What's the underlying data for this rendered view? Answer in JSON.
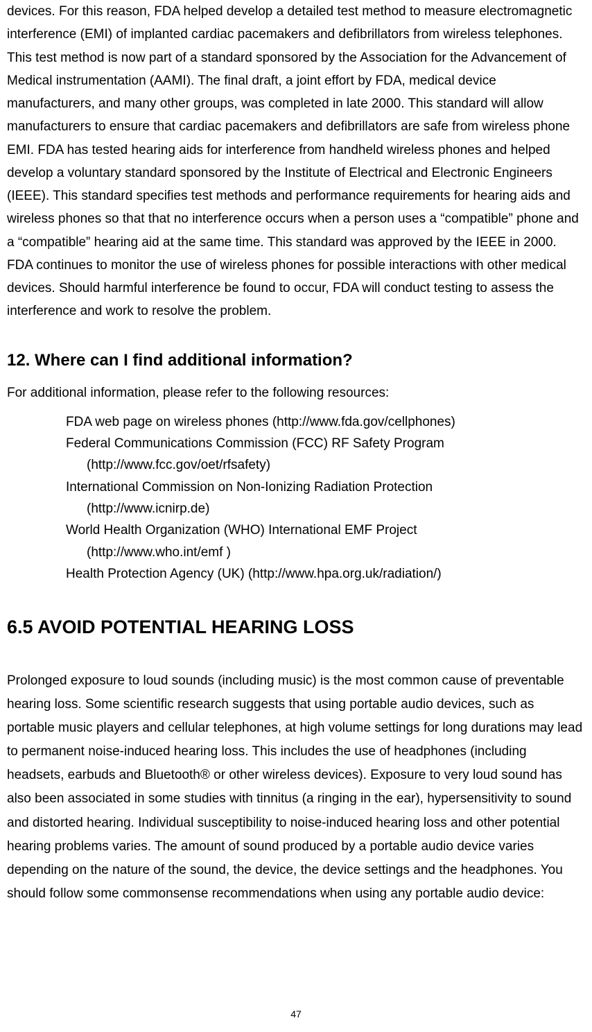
{
  "colors": {
    "text": "#000000",
    "background": "#ffffff"
  },
  "typography": {
    "body_fontsize": 19,
    "heading_fontsize": 24,
    "large_heading_fontsize": 27,
    "pagenum_fontsize": 14,
    "line_height": 1.75
  },
  "paragraph1": "devices. For this reason, FDA helped develop a detailed test method to measure electromagnetic interference (EMI) of implanted cardiac pacemakers and defibrillators from wireless telephones. This test method is now part of a standard sponsored by the Association for the Advancement of Medical instrumentation (AAMI). The final draft, a joint effort by FDA, medical device manufacturers, and many other groups, was completed in late 2000. This standard will allow manufacturers to ensure that cardiac pacemakers and defibrillators are safe from wireless phone EMI. FDA has tested hearing aids for interference from handheld wireless phones and helped develop a voluntary standard sponsored by the Institute of Electrical and Electronic Engineers (IEEE). This standard specifies test methods and performance requirements for hearing aids and wireless phones so that that no interference occurs when a person uses a “compatible” phone and a “compatible” hearing aid at the same time. This standard was approved by the IEEE in 2000. FDA continues to monitor the use of wireless phones for possible interactions with other medical devices. Should harmful interference be found to occur, FDA will conduct testing to assess the interference and work to resolve the problem.",
  "section12": {
    "heading": "12. Where can I find additional information?",
    "intro": "For additional information, please refer to the following resources:",
    "resources": {
      "item1": "FDA web page on wireless phones (http://www.fda.gov/cellphones)",
      "item2_name": "Federal Communications Commission (FCC) RF Safety Program",
      "item2_url": "(http://www.fcc.gov/oet/rfsafety)",
      "item3_name": "International Commission on Non-Ionizing Radiation Protection",
      "item3_url": "(http://www.icnirp.de)",
      "item4_name": "World Health Organization (WHO) International EMF Project",
      "item4_url": "(http://www.who.int/emf )",
      "item5": "Health Protection Agency (UK) (http://www.hpa.org.uk/radiation/)"
    }
  },
  "section65": {
    "heading": "6.5 AVOID POTENTIAL HEARING LOSS",
    "paragraph": "Prolonged exposure to loud sounds (including music) is the most common cause of preventable hearing loss. Some scientific research suggests that using portable audio devices, such as portable music players and cellular telephones, at high volume settings for long durations may lead to permanent noise-induced hearing loss. This includes the use of headphones (including headsets, earbuds and Bluetooth® or other wireless devices). Exposure to very loud sound has also been associated in some studies with tinnitus (a ringing in the ear), hypersensitivity to sound and distorted hearing. Individual susceptibility to noise-induced hearing loss and other potential hearing problems varies. The amount of sound produced by a portable audio device varies depending on the nature of the sound, the device, the device settings and the headphones. You should follow some commonsense recommendations when using any portable audio device:"
  },
  "page_number": "47"
}
